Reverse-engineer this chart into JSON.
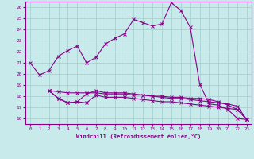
{
  "xlabel": "Windchill (Refroidissement éolien,°C)",
  "background_color": "#c8eaea",
  "grid_color": "#a0cccc",
  "line_color": "#880088",
  "x_ticks": [
    0,
    1,
    2,
    3,
    4,
    5,
    6,
    7,
    8,
    9,
    10,
    11,
    12,
    13,
    14,
    15,
    16,
    17,
    18,
    19,
    20,
    21,
    22,
    23
  ],
  "ylim": [
    15.5,
    26.5
  ],
  "xlim": [
    -0.5,
    23.5
  ],
  "yticks": [
    16,
    17,
    18,
    19,
    20,
    21,
    22,
    23,
    24,
    25,
    26
  ],
  "line1_x": [
    0,
    1,
    2,
    3,
    4,
    5,
    6,
    7,
    8,
    9,
    10,
    11,
    12,
    13,
    14,
    15,
    16,
    17,
    18,
    19,
    20,
    21,
    22,
    23
  ],
  "line1_y": [
    21.0,
    19.9,
    20.3,
    21.6,
    22.1,
    22.5,
    21.0,
    21.5,
    22.7,
    23.2,
    23.6,
    24.9,
    24.6,
    24.3,
    24.5,
    26.4,
    25.7,
    24.2,
    19.1,
    17.3,
    17.2,
    16.8,
    16.0,
    15.9
  ],
  "line2_x": [
    2,
    3,
    4,
    5,
    6,
    7,
    8,
    9,
    10,
    11,
    12,
    13,
    14,
    15,
    16,
    17,
    18,
    19,
    20,
    21,
    22,
    23
  ],
  "line2_y": [
    18.5,
    17.8,
    17.4,
    17.5,
    18.2,
    18.5,
    18.3,
    18.3,
    18.3,
    18.2,
    18.1,
    18.0,
    17.9,
    17.8,
    17.8,
    17.7,
    17.6,
    17.5,
    17.4,
    17.3,
    17.1,
    15.9
  ],
  "line3_x": [
    2,
    3,
    4,
    5,
    6,
    7,
    8,
    9,
    10,
    11,
    12,
    13,
    14,
    15,
    16,
    17,
    18,
    19,
    20,
    21,
    22,
    23
  ],
  "line3_y": [
    18.5,
    17.8,
    17.4,
    17.5,
    17.4,
    18.1,
    17.9,
    17.9,
    17.9,
    17.8,
    17.7,
    17.6,
    17.5,
    17.5,
    17.4,
    17.3,
    17.2,
    17.1,
    17.0,
    16.9,
    16.8,
    15.9
  ],
  "line4_x": [
    2,
    3,
    4,
    5,
    6,
    7,
    8,
    9,
    10,
    11,
    12,
    13,
    14,
    15,
    16,
    17,
    18,
    19,
    20,
    21,
    22,
    23
  ],
  "line4_y": [
    18.5,
    18.4,
    18.3,
    18.3,
    18.3,
    18.3,
    18.2,
    18.2,
    18.2,
    18.1,
    18.1,
    18.0,
    18.0,
    17.9,
    17.9,
    17.8,
    17.8,
    17.7,
    17.5,
    17.2,
    16.8,
    15.9
  ]
}
